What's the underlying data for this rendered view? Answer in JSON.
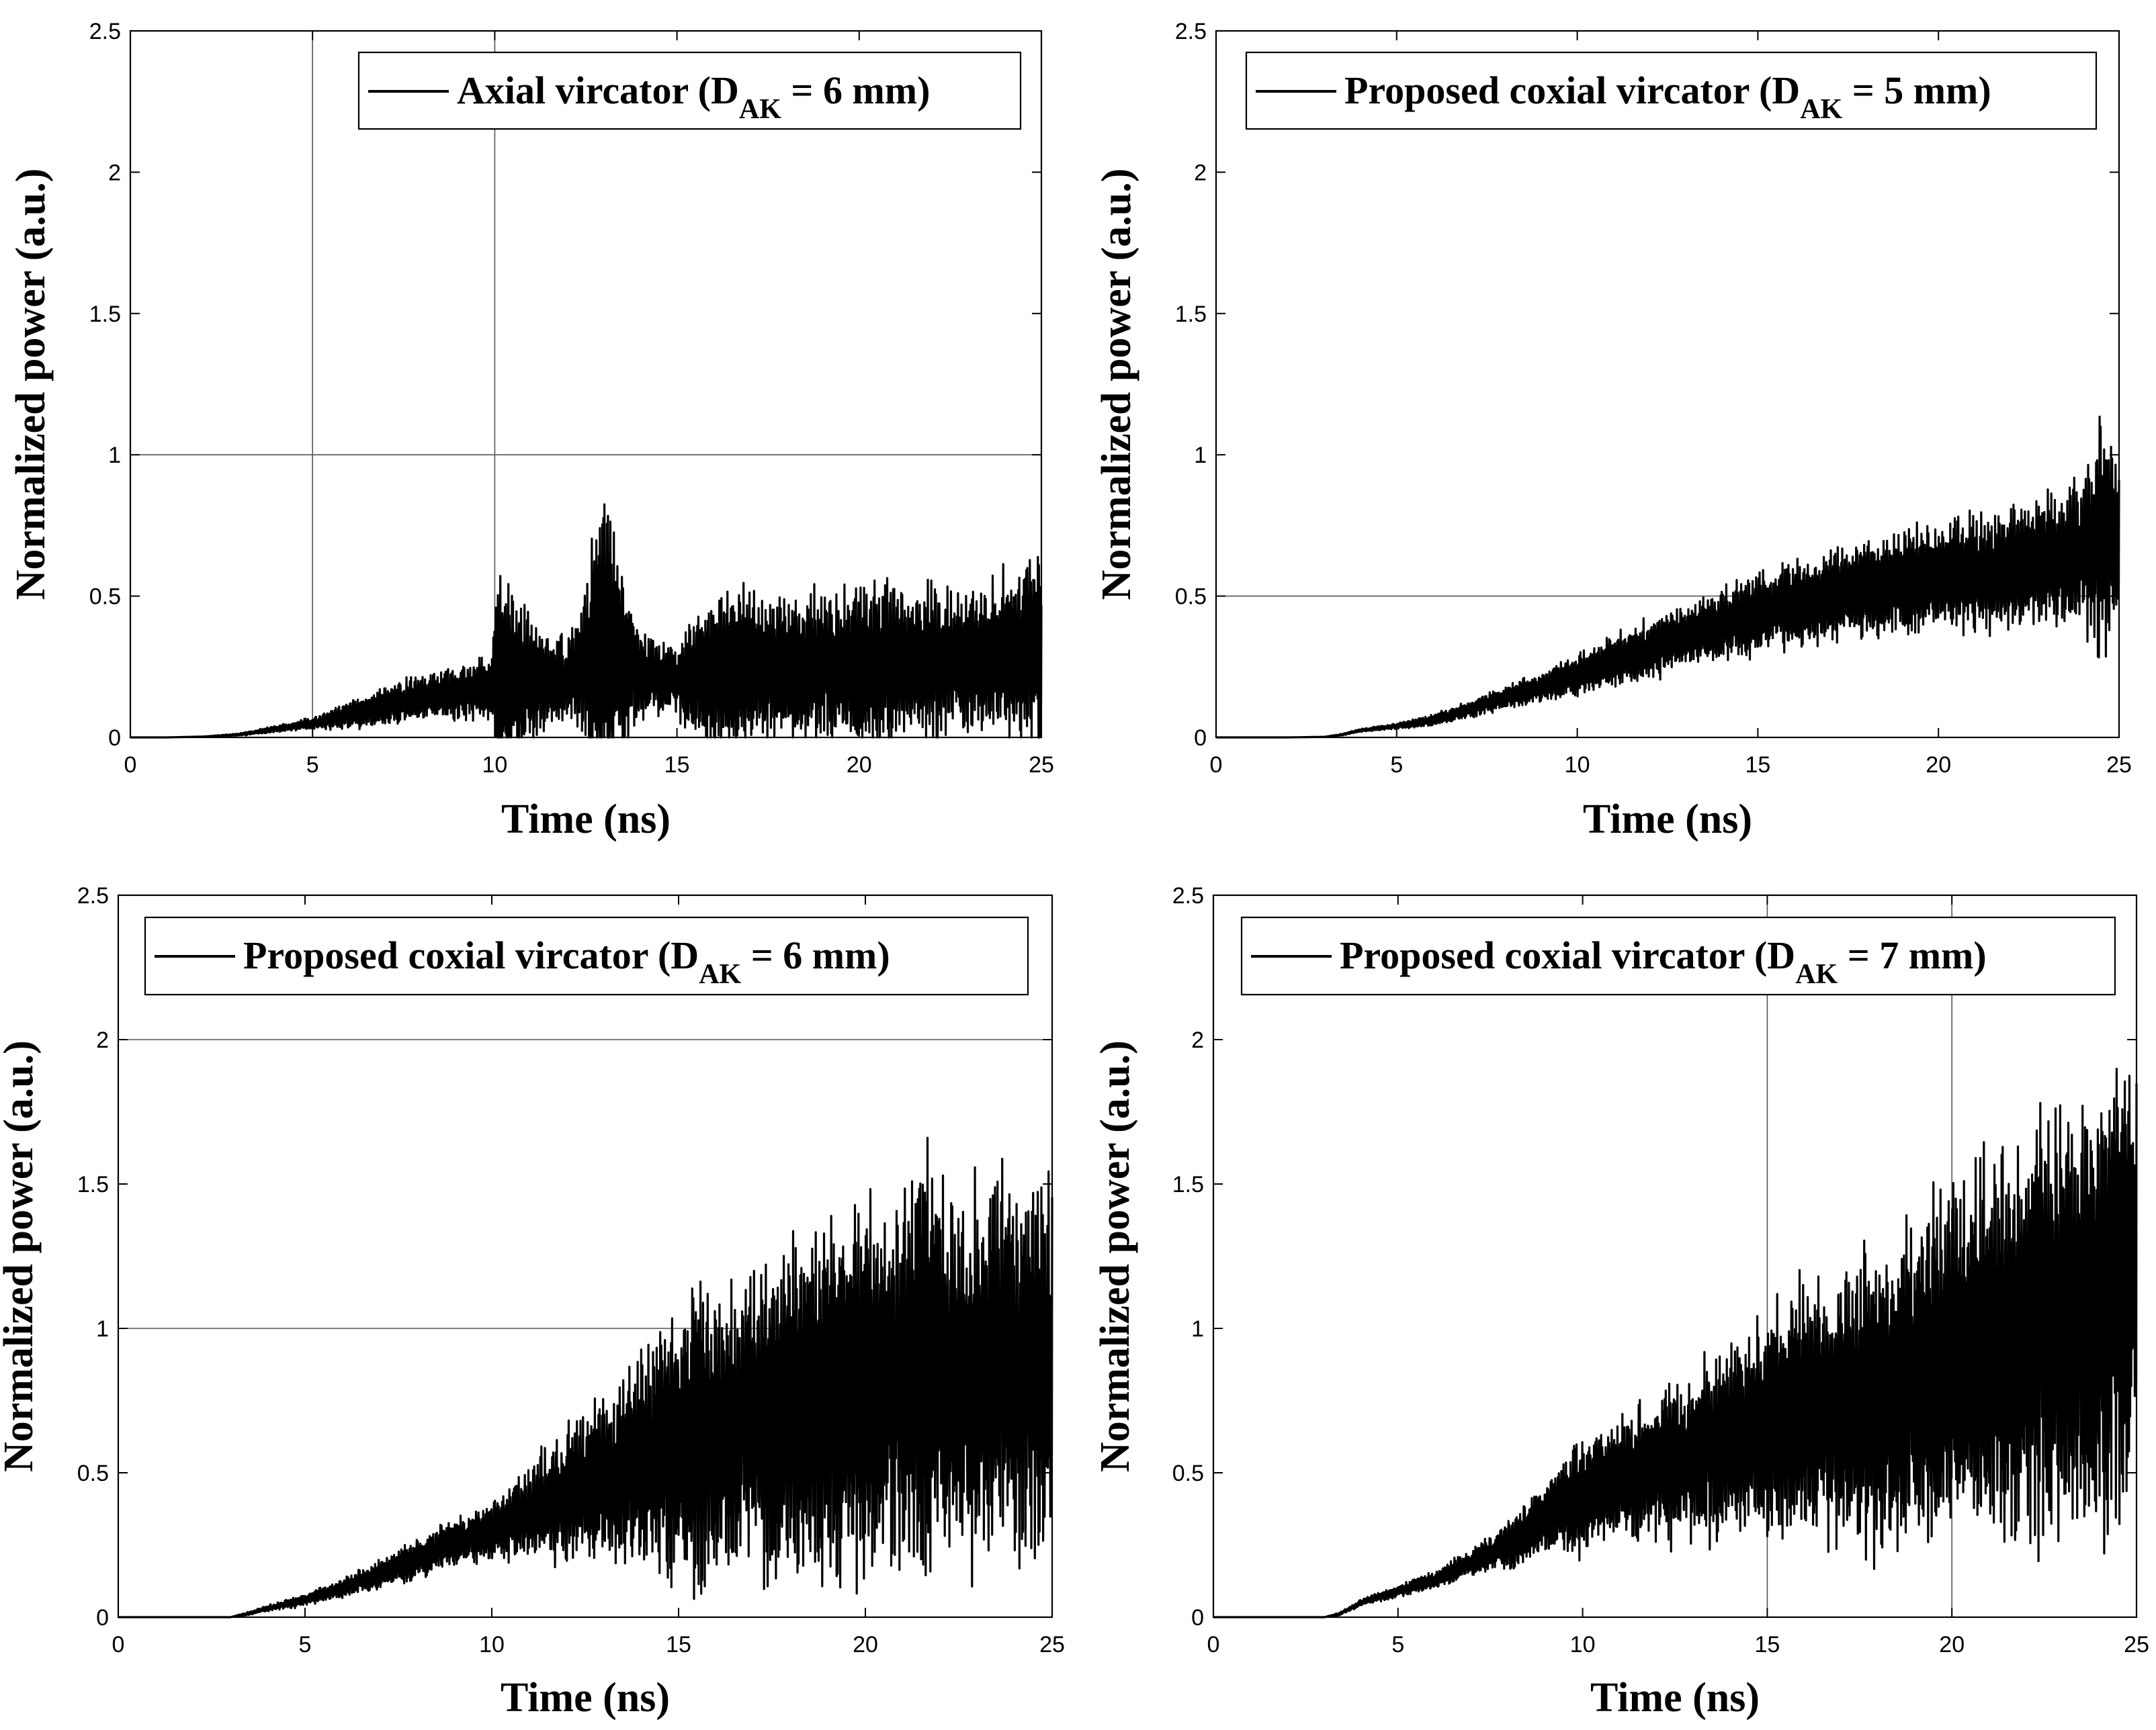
{
  "figure": {
    "description_free": true
  },
  "chart_data": [
    {
      "type": "line",
      "title": "",
      "xlabel": "Time (ns)",
      "ylabel": "Normalized power (a.u.)",
      "xlim": [
        0,
        25
      ],
      "ylim": [
        0,
        2.5
      ],
      "xticks": [
        0,
        5,
        10,
        15,
        20,
        25
      ],
      "yticks": [
        0,
        0.5,
        1,
        1.5,
        2,
        2.5
      ],
      "xtick_labels": [
        "0",
        "5",
        "10",
        "15",
        "20",
        "25"
      ],
      "ytick_labels": [
        "0",
        "0.5",
        "1",
        "1.5",
        "2",
        "2.5"
      ],
      "grid_x": [
        5,
        10
      ],
      "grid_y": [
        1
      ],
      "legend": {
        "label_main": "Axial vircator (D",
        "label_sub": "AK",
        "label_tail": " = 6 mm)",
        "position": "top-right"
      },
      "series": [
        {
          "name": "Axial vircator (DAK = 6 mm)",
          "x": [
            0,
            1,
            2,
            3,
            4,
            5,
            6,
            7,
            8,
            9,
            9.9,
            10.1,
            11,
            12,
            12.5,
            12.9,
            13.5,
            14,
            15,
            15.8,
            16.5,
            17.5,
            18.5,
            19.5,
            20.5,
            21.5,
            22.5,
            23.5,
            24.5,
            25
          ],
          "center": [
            0,
            0,
            0.003,
            0.01,
            0.03,
            0.05,
            0.08,
            0.11,
            0.14,
            0.16,
            0.18,
            0.22,
            0.2,
            0.21,
            0.26,
            0.32,
            0.28,
            0.22,
            0.2,
            0.22,
            0.24,
            0.24,
            0.24,
            0.25,
            0.26,
            0.26,
            0.27,
            0.28,
            0.3,
            0.32
          ],
          "amplitude": [
            0,
            0,
            0,
            0.004,
            0.012,
            0.02,
            0.05,
            0.07,
            0.08,
            0.09,
            0.12,
            0.42,
            0.2,
            0.14,
            0.25,
            0.6,
            0.3,
            0.15,
            0.12,
            0.28,
            0.3,
            0.25,
            0.25,
            0.28,
            0.3,
            0.25,
            0.24,
            0.25,
            0.3,
            0.35
          ]
        }
      ]
    },
    {
      "type": "line",
      "title": "",
      "xlabel": "Time (ns)",
      "ylabel": "Normalized power (a.u.)",
      "xlim": [
        0,
        25
      ],
      "ylim": [
        0,
        2.5
      ],
      "xticks": [
        0,
        5,
        10,
        15,
        20,
        25
      ],
      "yticks": [
        0,
        0.5,
        1,
        1.5,
        2,
        2.5
      ],
      "xtick_labels": [
        "0",
        "5",
        "10",
        "15",
        "20",
        "25"
      ],
      "ytick_labels": [
        "0",
        "0.5",
        "1",
        "1.5",
        "2",
        "2.5"
      ],
      "grid_x": [],
      "grid_y": [
        0.5
      ],
      "legend": {
        "label_main": "Proposed coxial vircator (D",
        "label_sub": "AK",
        "label_tail": " = 5 mm)",
        "position": "top"
      },
      "series": [
        {
          "name": "Proposed coxial vircator (DAK = 5 mm)",
          "x": [
            0,
            2,
            3,
            3.5,
            4,
            5,
            6,
            7,
            8,
            9,
            10,
            11,
            12,
            13,
            14,
            15,
            16,
            17,
            18,
            19,
            20,
            21,
            22,
            23,
            24,
            24.5,
            25
          ],
          "center": [
            0,
            0,
            0.002,
            0.01,
            0.025,
            0.04,
            0.06,
            0.1,
            0.14,
            0.18,
            0.22,
            0.27,
            0.31,
            0.36,
            0.4,
            0.44,
            0.47,
            0.5,
            0.52,
            0.55,
            0.57,
            0.59,
            0.6,
            0.62,
            0.65,
            0.7,
            0.68
          ],
          "amplitude": [
            0,
            0,
            0,
            0.003,
            0.005,
            0.01,
            0.02,
            0.03,
            0.04,
            0.05,
            0.07,
            0.09,
            0.1,
            0.11,
            0.12,
            0.14,
            0.15,
            0.16,
            0.17,
            0.18,
            0.18,
            0.19,
            0.2,
            0.22,
            0.26,
            0.4,
            0.25
          ]
        }
      ]
    },
    {
      "type": "line",
      "title": "",
      "xlabel": "Time (ns)",
      "ylabel": "Normalized power (a.u.)",
      "xlim": [
        0,
        25
      ],
      "ylim": [
        0,
        2.5
      ],
      "xticks": [
        0,
        5,
        10,
        15,
        20,
        25
      ],
      "yticks": [
        0,
        0.5,
        1,
        1.5,
        2,
        2.5
      ],
      "xtick_labels": [
        "0",
        "5",
        "10",
        "15",
        "20",
        "25"
      ],
      "ytick_labels": [
        "0",
        "0.5",
        "1",
        "1.5",
        "2",
        "2.5"
      ],
      "grid_x": [],
      "grid_y": [
        1,
        2
      ],
      "legend": {
        "label_main": "Proposed coxial vircator (D",
        "label_sub": "AK",
        "label_tail": " = 6 mm)",
        "position": "top"
      },
      "series": [
        {
          "name": "Proposed coxial vircator (DAK = 6 mm)",
          "x": [
            0,
            3,
            3.4,
            4,
            5,
            6,
            7,
            8,
            9,
            10,
            11,
            12,
            13,
            14,
            15,
            15.5,
            16,
            17,
            18,
            19,
            20,
            21,
            21.5,
            22,
            23,
            24,
            25
          ],
          "center": [
            0,
            0,
            0.01,
            0.03,
            0.06,
            0.1,
            0.15,
            0.2,
            0.26,
            0.3,
            0.36,
            0.42,
            0.48,
            0.54,
            0.6,
            0.65,
            0.62,
            0.67,
            0.72,
            0.76,
            0.8,
            0.82,
            0.86,
            0.84,
            0.85,
            0.88,
            0.9
          ],
          "amplitude": [
            0,
            0,
            0.005,
            0.01,
            0.02,
            0.03,
            0.05,
            0.07,
            0.08,
            0.1,
            0.15,
            0.22,
            0.3,
            0.35,
            0.45,
            0.55,
            0.45,
            0.5,
            0.55,
            0.6,
            0.65,
            0.6,
            0.85,
            0.6,
            0.62,
            0.65,
            0.6
          ]
        }
      ]
    },
    {
      "type": "line",
      "title": "",
      "xlabel": "Time (ns)",
      "ylabel": "Normalized power (a.u.)",
      "xlim": [
        0,
        25
      ],
      "ylim": [
        0,
        2.5
      ],
      "xticks": [
        0,
        5,
        10,
        15,
        20,
        25
      ],
      "yticks": [
        0,
        0.5,
        1,
        1.5,
        2,
        2.5
      ],
      "xtick_labels": [
        "0",
        "5",
        "10",
        "15",
        "20",
        "25"
      ],
      "ytick_labels": [
        "0",
        "0.5",
        "1",
        "1.5",
        "2",
        "2.5"
      ],
      "grid_x": [
        15,
        20
      ],
      "grid_y": [],
      "legend": {
        "label_main": "Proposed coxial vircator (D",
        "label_sub": "AK",
        "label_tail": " = 7 mm)",
        "position": "top"
      },
      "series": [
        {
          "name": "Proposed coxial vircator (DAK = 7 mm)",
          "x": [
            0,
            3,
            3.4,
            4,
            5,
            6,
            7,
            8,
            9,
            10,
            11,
            12,
            13,
            14,
            15,
            16,
            17,
            18,
            19,
            20,
            21,
            22,
            23,
            24,
            24.5,
            25
          ],
          "center": [
            0,
            0,
            0.01,
            0.05,
            0.09,
            0.13,
            0.19,
            0.25,
            0.35,
            0.42,
            0.48,
            0.52,
            0.56,
            0.62,
            0.66,
            0.7,
            0.72,
            0.76,
            0.82,
            0.88,
            0.92,
            0.98,
            1.0,
            1.05,
            1.15,
            1.2
          ],
          "amplitude": [
            0,
            0,
            0.005,
            0.01,
            0.02,
            0.03,
            0.05,
            0.08,
            0.12,
            0.2,
            0.22,
            0.25,
            0.28,
            0.32,
            0.38,
            0.42,
            0.45,
            0.5,
            0.55,
            0.6,
            0.65,
            0.7,
            0.75,
            0.75,
            0.8,
            0.7
          ]
        }
      ]
    }
  ]
}
